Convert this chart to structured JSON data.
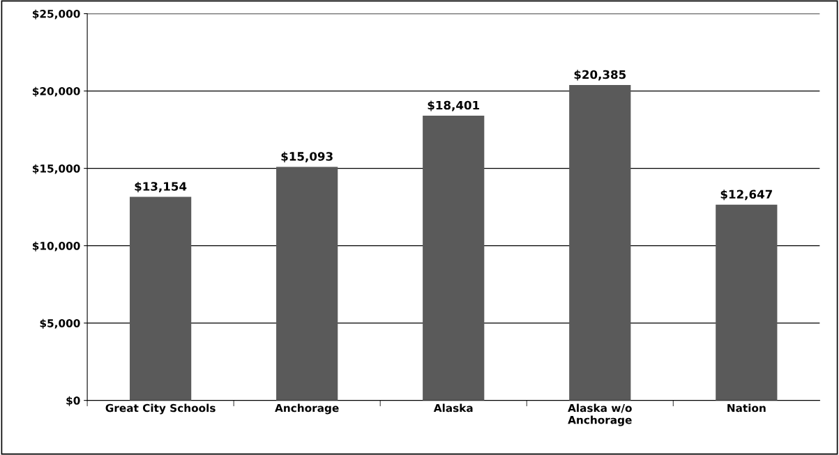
{
  "chart_data": {
    "type": "bar",
    "categories": [
      "Great City Schools",
      "Anchorage",
      "Alaska",
      "Alaska w/o\nAnchorage",
      "Nation"
    ],
    "values": [
      13154,
      15093,
      18401,
      20385,
      12647
    ],
    "value_labels": [
      "$13,154",
      "$15,093",
      "$18,401",
      "$20,385",
      "$12,647"
    ],
    "color": "#5a5a5a",
    "ylim": [
      0,
      25000
    ],
    "yticks": [
      {
        "value": 0,
        "label": "$0"
      },
      {
        "value": 5000,
        "label": "$5,000"
      },
      {
        "value": 10000,
        "label": "$10,000"
      },
      {
        "value": 15000,
        "label": "$15,000"
      },
      {
        "value": 20000,
        "label": "$20,000"
      },
      {
        "value": 25000,
        "label": "$25,000"
      }
    ],
    "grid": "y",
    "legend": false
  }
}
